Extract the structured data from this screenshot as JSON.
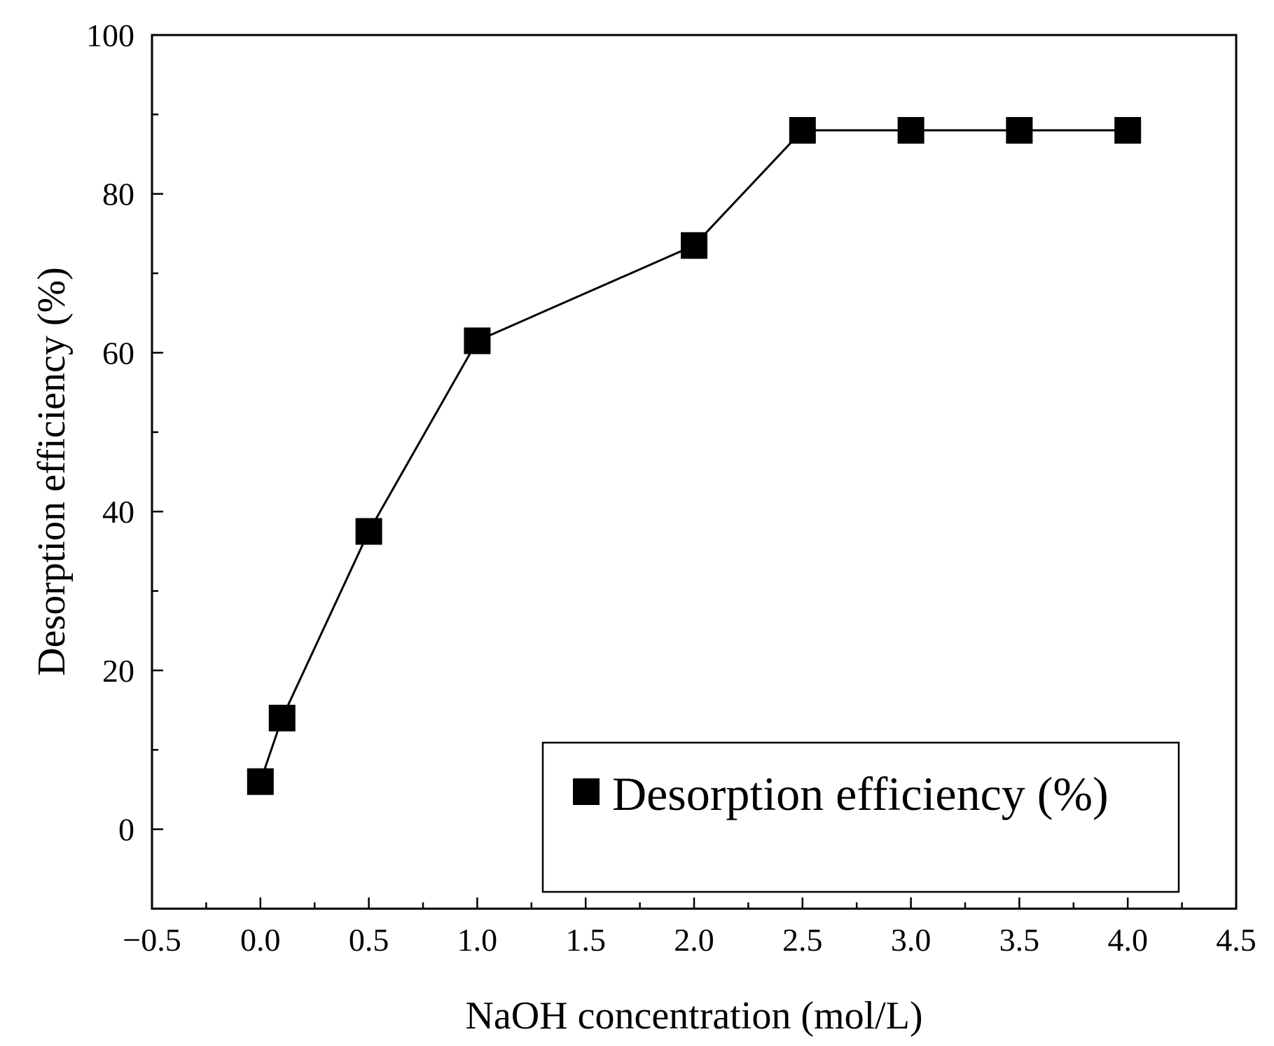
{
  "colors": {
    "axis": "#000000",
    "series": "#000000",
    "background": "#ffffff"
  },
  "chart_data": {
    "type": "line",
    "title": "",
    "xlabel": "NaOH concentration (mol/L)",
    "ylabel": "Desorption efficiency (%)",
    "xlim": [
      -0.5,
      4.5
    ],
    "ylim": [
      -10,
      100
    ],
    "xticks": [
      -0.5,
      0.0,
      0.5,
      1.0,
      1.5,
      2.0,
      2.5,
      3.0,
      3.5,
      4.0,
      4.5
    ],
    "xtick_labels": [
      "−0.5",
      "0.0",
      "0.5",
      "1.0",
      "1.5",
      "2.0",
      "2.5",
      "3.0",
      "3.5",
      "4.0",
      "4.5"
    ],
    "yticks": [
      0,
      20,
      40,
      60,
      80,
      100
    ],
    "ytick_labels": [
      "0",
      "20",
      "40",
      "60",
      "80",
      "100"
    ],
    "grid": false,
    "legend": {
      "position": "lower-right",
      "entries": [
        "Desorption efficiency (%)"
      ]
    },
    "series": [
      {
        "name": "Desorption efficiency (%)",
        "marker": "square",
        "x": [
          0.0,
          0.1,
          0.5,
          1.0,
          2.0,
          2.5,
          3.0,
          3.5,
          4.0
        ],
        "y": [
          6,
          14,
          37.5,
          61.5,
          73.5,
          88,
          88,
          88,
          88
        ]
      }
    ]
  }
}
